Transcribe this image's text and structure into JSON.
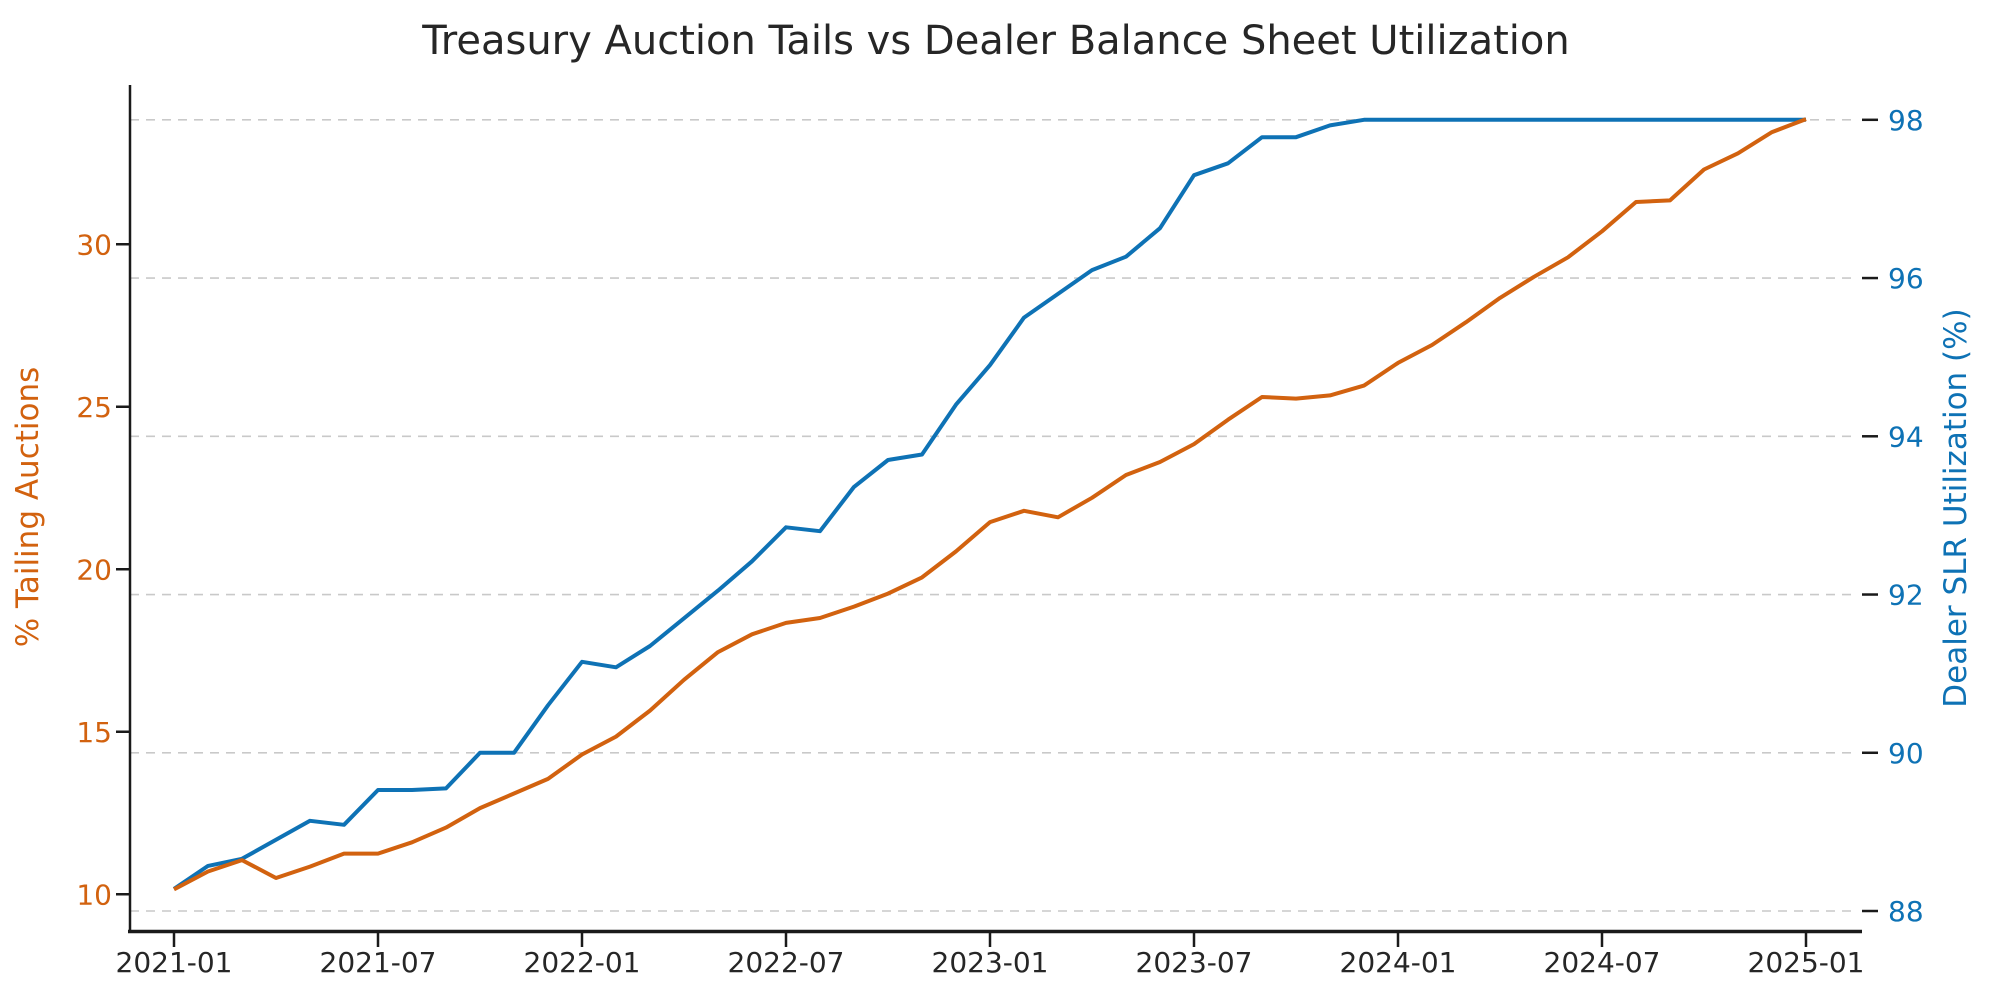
{
  "title": "Treasury Auction Tails vs Dealer Balance Sheet Utilization",
  "chart_data": {
    "type": "line",
    "title": "Treasury Auction Tails vs Dealer Balance Sheet Utilization",
    "x": [
      "2021-01",
      "2021-02",
      "2021-03",
      "2021-04",
      "2021-05",
      "2021-06",
      "2021-07",
      "2021-08",
      "2021-09",
      "2021-10",
      "2021-11",
      "2021-12",
      "2022-01",
      "2022-02",
      "2022-03",
      "2022-04",
      "2022-05",
      "2022-06",
      "2022-07",
      "2022-08",
      "2022-09",
      "2022-10",
      "2022-11",
      "2022-12",
      "2023-01",
      "2023-02",
      "2023-03",
      "2023-04",
      "2023-05",
      "2023-06",
      "2023-07",
      "2023-08",
      "2023-09",
      "2023-10",
      "2023-11",
      "2023-12",
      "2024-01",
      "2024-02",
      "2024-03",
      "2024-04",
      "2024-05",
      "2024-06",
      "2024-07",
      "2024-08",
      "2024-09",
      "2024-10",
      "2024-11",
      "2024-12",
      "2025-01"
    ],
    "x_tick_labels": [
      "2021-01",
      "2021-07",
      "2022-01",
      "2022-07",
      "2023-01",
      "2023-07",
      "2024-01",
      "2024-07",
      "2025-01"
    ],
    "x_tick_every_n_months": 6,
    "series": [
      {
        "name": "% Tailing Auctions",
        "axis": "left",
        "color": "#d2620f",
        "values": [
          10.15,
          10.7,
          11.05,
          10.5,
          10.85,
          11.25,
          11.25,
          11.6,
          12.05,
          12.65,
          13.1,
          13.55,
          14.3,
          14.85,
          15.65,
          16.6,
          17.45,
          18.0,
          18.35,
          18.5,
          18.85,
          19.25,
          19.75,
          20.55,
          21.45,
          21.8,
          21.6,
          22.2,
          22.9,
          23.3,
          23.85,
          24.6,
          25.3,
          25.25,
          25.35,
          25.65,
          26.35,
          26.9,
          27.6,
          28.35,
          29.0,
          29.6,
          30.4,
          31.3,
          31.35,
          32.3,
          32.8,
          33.45,
          33.85
        ]
      },
      {
        "name": "Dealer SLR Utilization (%)",
        "axis": "right",
        "color": "#0e72b5",
        "values": [
          88.28,
          88.57,
          88.66,
          88.9,
          89.14,
          89.09,
          89.53,
          89.53,
          89.55,
          90.0,
          90.0,
          90.6,
          91.15,
          91.08,
          91.35,
          91.7,
          92.05,
          92.42,
          92.85,
          92.8,
          93.36,
          93.7,
          93.77,
          94.4,
          94.9,
          95.5,
          95.8,
          96.1,
          96.27,
          96.63,
          97.3,
          97.45,
          97.78,
          97.78,
          97.93,
          98.0,
          98.0,
          98.0,
          98.0,
          98.0,
          98.0,
          98.0,
          98.0,
          98.0,
          98.0,
          98.0,
          98.0,
          98.0,
          98.0
        ]
      }
    ],
    "left_axis": {
      "label": "% Tailing Auctions",
      "ticks": [
        10,
        15,
        20,
        25,
        30
      ],
      "range": [
        8.9,
        34.9
      ],
      "color": "#d2620f"
    },
    "right_axis": {
      "label": "Dealer SLR Utilization (%)",
      "ticks": [
        88,
        90,
        92,
        94,
        96,
        98
      ],
      "range": [
        87.76,
        98.44
      ],
      "color": "#0e72b5"
    },
    "grid": {
      "style": "horizontal dashed on right-axis ticks",
      "on": true
    },
    "legend": "none"
  },
  "colors": {
    "background": "#ffffff",
    "title_text": "#262626",
    "x_tick_text": "#262626",
    "gridline": "#c9c9c9",
    "spine": "#1a1a1a"
  }
}
